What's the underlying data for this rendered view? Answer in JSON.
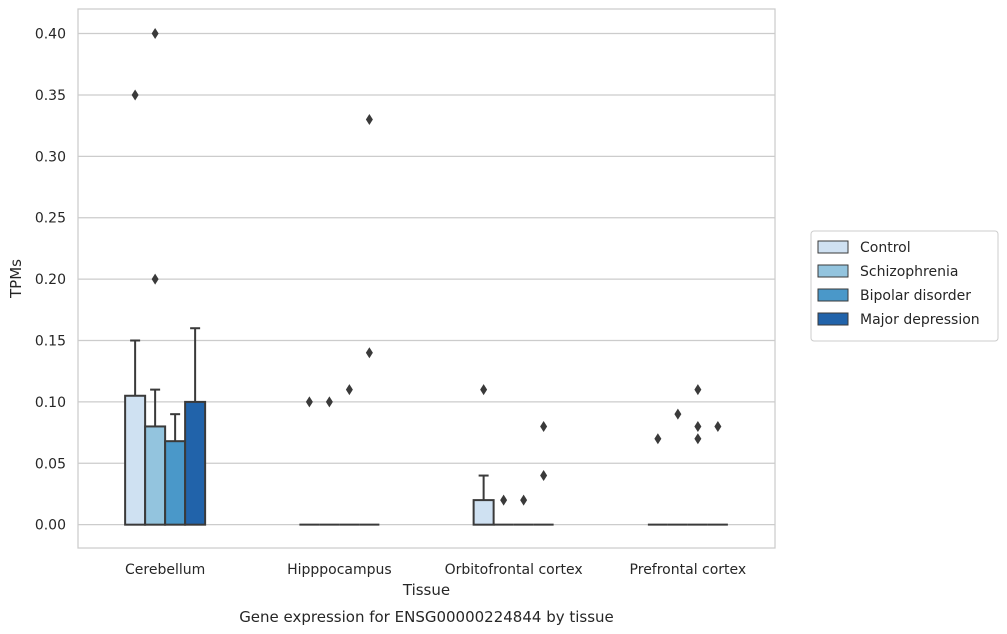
{
  "caption": "Gene expression for ENSG00000224844 by tissue",
  "chart_data": {
    "type": "bar",
    "xlabel": "Tissue",
    "ylabel": "TPMs",
    "ylim": [
      -0.019,
      0.42
    ],
    "yticks": [
      "0.00",
      "0.05",
      "0.10",
      "0.15",
      "0.20",
      "0.25",
      "0.30",
      "0.35",
      "0.40"
    ],
    "grid": "horizontal",
    "legend_position": "right",
    "categories": [
      "Cerebellum",
      "Hipppocampus",
      "Orbitofrontal cortex",
      "Prefrontal cortex"
    ],
    "series": [
      {
        "name": "Control",
        "color": "#cfe1f2",
        "values": [
          0.105,
          0.0,
          0.02,
          0.0
        ],
        "error_upper": [
          0.15,
          null,
          0.04,
          null
        ],
        "outliers": [
          [
            0.35
          ],
          [
            0.1
          ],
          [
            0.11
          ],
          [
            0.07
          ]
        ]
      },
      {
        "name": "Schizophrenia",
        "color": "#93c4de",
        "values": [
          0.08,
          0.0,
          0.0,
          0.0
        ],
        "error_upper": [
          0.11,
          null,
          null,
          null
        ],
        "outliers": [
          [
            0.4,
            0.2
          ],
          [
            0.1
          ],
          [
            0.02
          ],
          [
            0.09
          ]
        ]
      },
      {
        "name": "Bipolar disorder",
        "color": "#4a98c9",
        "values": [
          0.068,
          0.0,
          0.0,
          0.0
        ],
        "error_upper": [
          0.09,
          null,
          null,
          null
        ],
        "outliers": [
          [],
          [
            0.11
          ],
          [
            0.02
          ],
          [
            0.11,
            0.08,
            0.07
          ]
        ]
      },
      {
        "name": "Major depression",
        "color": "#2163aa",
        "values": [
          0.1,
          0.0,
          0.0,
          0.0
        ],
        "error_upper": [
          0.16,
          null,
          null,
          null
        ],
        "outliers": [
          [],
          [
            0.33,
            0.14
          ],
          [
            0.08,
            0.04
          ],
          [
            0.08
          ]
        ]
      }
    ]
  }
}
